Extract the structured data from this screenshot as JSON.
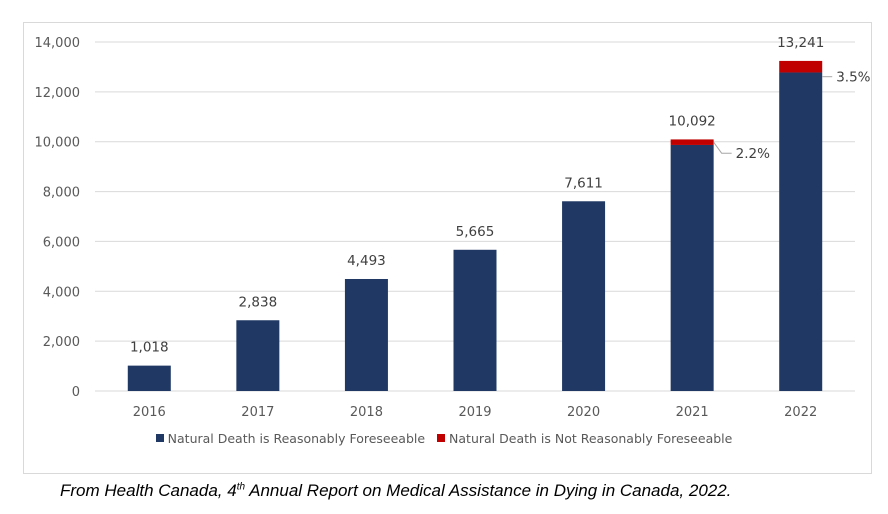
{
  "chart_data": {
    "type": "bar",
    "stacked": true,
    "title": "",
    "xlabel": "",
    "ylabel": "",
    "ylim": [
      0,
      14000
    ],
    "yticks": [
      0,
      2000,
      4000,
      6000,
      8000,
      10000,
      12000,
      14000
    ],
    "ytick_labels": [
      "0",
      "2,000",
      "4,000",
      "6,000",
      "8,000",
      "10,000",
      "12,000",
      "14,000"
    ],
    "grid": true,
    "categories": [
      "2016",
      "2017",
      "2018",
      "2019",
      "2020",
      "2021",
      "2022"
    ],
    "series": [
      {
        "name": "Natural Death is Reasonably Foreseeable",
        "color": "#1f3864",
        "values": [
          1018,
          2838,
          4493,
          5665,
          7611,
          9870,
          12778
        ]
      },
      {
        "name": "Natural Death is Not Reasonably Foreseeable",
        "color": "#c00000",
        "values": [
          0,
          0,
          0,
          0,
          0,
          222,
          463
        ]
      }
    ],
    "totals": [
      1018,
      2838,
      4493,
      5665,
      7611,
      10092,
      13241
    ],
    "total_labels": [
      "1,018",
      "2,838",
      "4,493",
      "5,665",
      "7,611",
      "10,092",
      "13,241"
    ],
    "annotations": [
      {
        "category": "2021",
        "text": "2.2%"
      },
      {
        "category": "2022",
        "text": "3.5%"
      }
    ],
    "legend_position": "bottom"
  },
  "caption": {
    "prefix": "From Health Canada, 4",
    "superscript": "th",
    "suffix": " Annual Report on Medical Assistance in Dying in Canada, 2022."
  }
}
